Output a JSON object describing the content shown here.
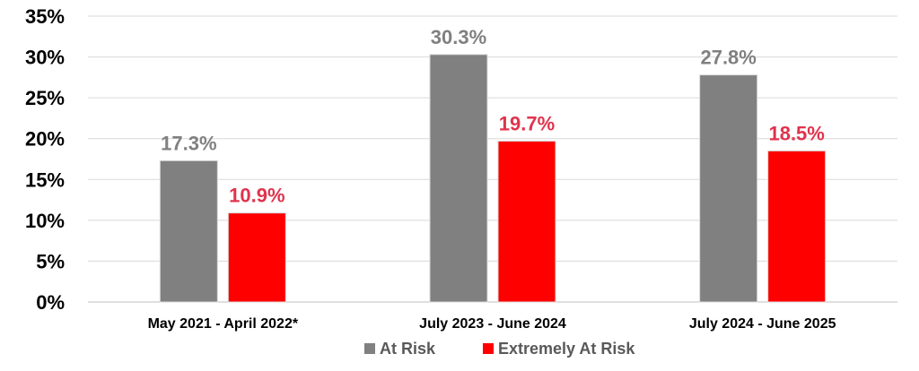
{
  "chart_data": {
    "type": "bar",
    "title": "",
    "xlabel": "",
    "ylabel": "",
    "ylim": [
      0,
      35
    ],
    "y_ticks": [
      "0%",
      "5%",
      "10%",
      "15%",
      "20%",
      "25%",
      "30%",
      "35%"
    ],
    "y_tick_values": [
      0,
      5,
      10,
      15,
      20,
      25,
      30,
      35
    ],
    "grid": true,
    "legend_position": "bottom",
    "categories": [
      "May 2021 - April 2022*",
      "July 2023 - June 2024",
      "July 2024 - June 2025"
    ],
    "series": [
      {
        "name": "At Risk",
        "values": [
          17.3,
          30.3,
          27.8
        ],
        "labels": [
          "17.3%",
          "30.3%",
          "27.8%"
        ],
        "color": "#808080",
        "label_color": "#808080"
      },
      {
        "name": "Extremely At Risk",
        "values": [
          10.9,
          19.7,
          18.5
        ],
        "labels": [
          "10.9%",
          "19.7%",
          "18.5%"
        ],
        "color": "#ff0000",
        "label_color": "#e0334d"
      }
    ]
  }
}
